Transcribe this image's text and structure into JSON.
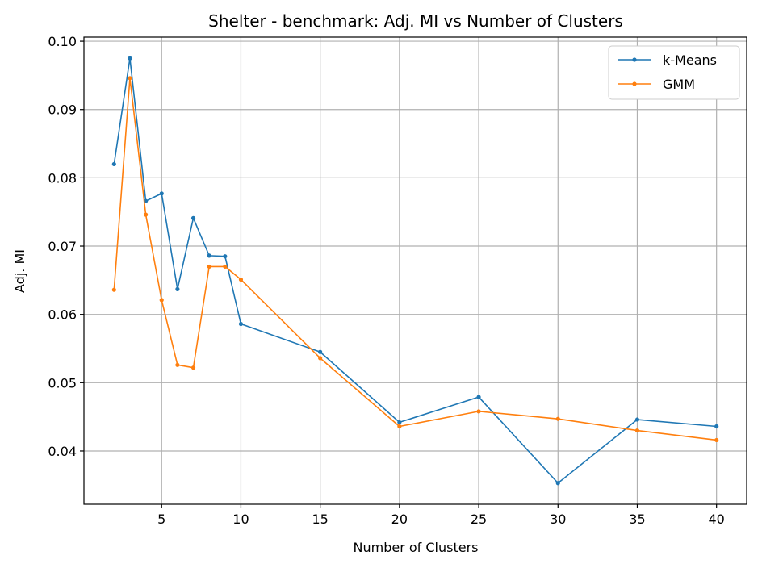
{
  "chart_data": {
    "type": "line",
    "title": "Shelter - benchmark: Adj. MI vs Number of Clusters",
    "xlabel": "Number of Clusters",
    "ylabel": "Adj. MI",
    "xlim": [
      0.1,
      41.9
    ],
    "ylim": [
      0.0322,
      0.1006
    ],
    "xticks": [
      5,
      10,
      15,
      20,
      25,
      30,
      35,
      40
    ],
    "yticks": [
      0.04,
      0.05,
      0.06,
      0.07,
      0.08,
      0.09,
      0.1
    ],
    "ytick_labels": [
      "0.04",
      "0.05",
      "0.06",
      "0.07",
      "0.08",
      "0.09",
      "0.10"
    ],
    "grid": true,
    "legend_position": "top-right",
    "x": [
      2,
      3,
      4,
      5,
      6,
      7,
      8,
      9,
      10,
      15,
      20,
      25,
      30,
      35,
      40
    ],
    "series": [
      {
        "name": "k-Means",
        "color": "#1f77b4",
        "values": [
          0.082,
          0.0975,
          0.0766,
          0.0777,
          0.0637,
          0.0741,
          0.0686,
          0.0685,
          0.0586,
          0.0545,
          0.0442,
          0.0479,
          0.0353,
          0.0446,
          0.0436
        ]
      },
      {
        "name": "GMM",
        "color": "#ff7f0e",
        "values": [
          0.0636,
          0.0946,
          0.0746,
          0.0621,
          0.0526,
          0.0522,
          0.067,
          0.067,
          0.0651,
          0.0536,
          0.0436,
          0.0458,
          0.0447,
          0.043,
          0.0416
        ]
      }
    ]
  }
}
